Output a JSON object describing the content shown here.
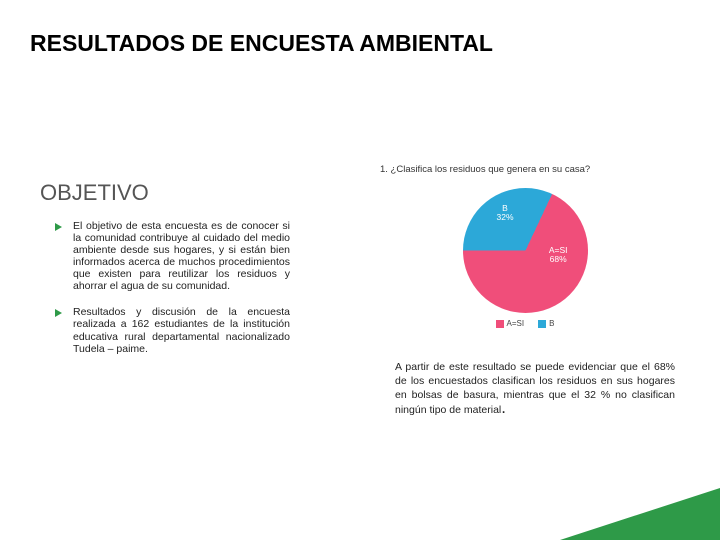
{
  "accent_color": "#2e9a48",
  "title": {
    "text": "RESULTADOS DE ENCUESTA AMBIENTAL",
    "fontsize": 23
  },
  "objetivo": {
    "heading": "OBJETIVO",
    "heading_fontsize": 22,
    "bullet_fontsize": 10.5,
    "items": [
      "El objetivo de esta encuesta es de conocer si la comunidad contribuye al cuidado del medio ambiente desde sus hogares, y si están bien informados acerca de muchos procedimientos que existen para reutilizar los residuos y ahorrar el agua de su comunidad.",
      "Resultados y discusión de la encuesta realizada a 162 estudiantes de la institución educativa rural departamental nacionalizado Tudela – paime."
    ]
  },
  "chart": {
    "question": "1. ¿Clasifica los residuos que genera en su casa?",
    "question_fontsize": 9.5,
    "type": "pie",
    "background_color": "#ffffff",
    "slices": [
      {
        "label": "A=SI",
        "value": 68,
        "display": "A=SI\n68%",
        "color": "#f04e7a"
      },
      {
        "label": "B",
        "value": 32,
        "display": "B\n32%",
        "color": "#2ca8d8"
      }
    ],
    "legend_fontsize": 8,
    "slice_label_fontsize": 8.5
  },
  "result": {
    "fontsize": 10.5,
    "text": "A partir de este resultado se puede evidenciar que el 68% de los encuestados clasifican los residuos en sus hogares en bolsas de basura, mientras que el 32 % no clasifican ningún tipo de material"
  }
}
